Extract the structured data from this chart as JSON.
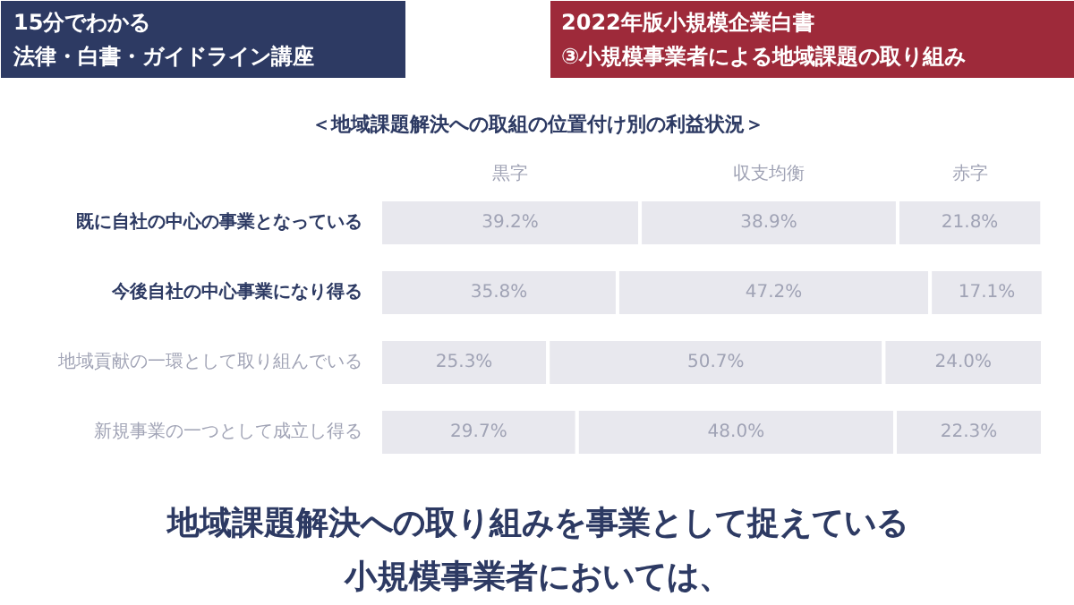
{
  "chart_data": {
    "type": "bar",
    "orientation": "horizontal",
    "stacked": true,
    "title": "＜地域課題解決への取組の位置付け別の利益状況＞",
    "categories": [
      "既に自社の中心の事業となっている",
      "今後自社の中心事業になり得る",
      "地域貢献の一環として取り組んでいる",
      "新規事業の一つとして成立し得る"
    ],
    "series": [
      {
        "name": "黒字",
        "color": "#e8e8ee",
        "values": [
          39.2,
          35.8,
          25.3,
          29.7
        ],
        "value_labels": [
          "39.2%",
          "35.8%",
          "25.3%",
          "29.7%"
        ]
      },
      {
        "name": "収支均衡",
        "color": "#e8e8ee",
        "values": [
          38.9,
          47.2,
          50.7,
          48.0
        ],
        "value_labels": [
          "38.9%",
          "47.2%",
          "50.7%",
          "48.0%"
        ]
      },
      {
        "name": "赤字",
        "color": "#e8e8ee",
        "values": [
          21.8,
          17.1,
          24.0,
          22.3
        ],
        "value_labels": [
          "21.8%",
          "17.1%",
          "24.0%",
          "22.3%"
        ]
      }
    ],
    "annotations": [
      "15分でわかる",
      "法律・白書・ガイドライン講座",
      "2022年版小規模企業白書",
      "③小規模事業者による地域課題の取り組み",
      "地域課題解決への取り組みを事業として捉えている",
      "小規模事業者においては、"
    ],
    "grid": false
  }
}
